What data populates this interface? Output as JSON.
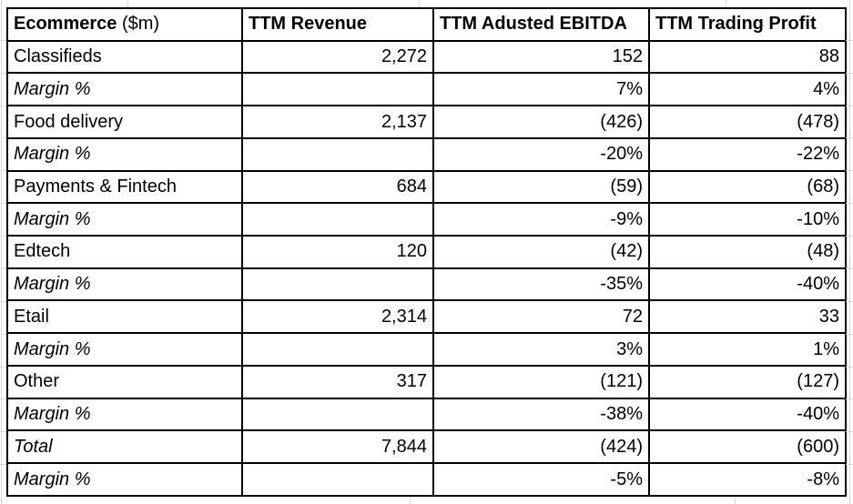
{
  "colors": {
    "negative": "#ff0000",
    "text": "#000000",
    "border": "#000000",
    "gridline": "#d8d8d8",
    "background": "#ffffff"
  },
  "chart_data": {
    "type": "table",
    "title": "Ecommerce ($m)",
    "columns": [
      "Ecommerce ($m)",
      "TTM Revenue",
      "TTM Adusted EBITDA",
      "TTM Trading Profit"
    ],
    "header": {
      "col1_bold": "Ecommerce",
      "col1_suffix": " ($m)",
      "col2": "TTM Revenue",
      "col3": "TTM Adusted EBITDA",
      "col4": "TTM Trading Profit"
    },
    "rows": [
      {
        "label": "Classifieds",
        "revenue": "2,272",
        "ebitda": "152",
        "profit": "88"
      },
      {
        "label": "Margin %",
        "revenue": "",
        "ebitda": "7%",
        "profit": "4%"
      },
      {
        "label": "Food delivery",
        "revenue": "2,137",
        "ebitda": "(426)",
        "profit": "(478)"
      },
      {
        "label": "Margin %",
        "revenue": "",
        "ebitda": "-20%",
        "profit": "-22%"
      },
      {
        "label": "Payments & Fintech",
        "revenue": "684",
        "ebitda": "(59)",
        "profit": "(68)"
      },
      {
        "label": "Margin %",
        "revenue": "",
        "ebitda": "-9%",
        "profit": "-10%"
      },
      {
        "label": "Edtech",
        "revenue": "120",
        "ebitda": "(42)",
        "profit": "(48)"
      },
      {
        "label": "Margin %",
        "revenue": "",
        "ebitda": "-35%",
        "profit": "-40%"
      },
      {
        "label": "Etail",
        "revenue": "2,314",
        "ebitda": "72",
        "profit": "33"
      },
      {
        "label": "Margin %",
        "revenue": "",
        "ebitda": "3%",
        "profit": "1%"
      },
      {
        "label": "Other",
        "revenue": "317",
        "ebitda": "(121)",
        "profit": "(127)"
      },
      {
        "label": "Margin %",
        "revenue": "",
        "ebitda": "-38%",
        "profit": "-40%"
      },
      {
        "label": "Total",
        "revenue": "7,844",
        "ebitda": "(424)",
        "profit": "(600)"
      },
      {
        "label": "Margin %",
        "revenue": "",
        "ebitda": "-5%",
        "profit": "-8%"
      }
    ]
  }
}
